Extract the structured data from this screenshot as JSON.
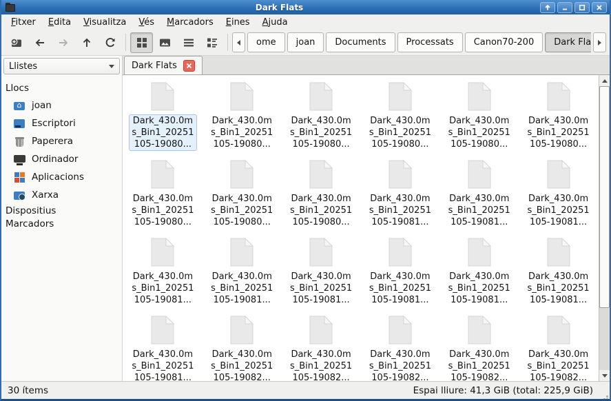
{
  "window": {
    "title": "Dark Flats",
    "controls": [
      "shade",
      "minimize",
      "maximize",
      "close"
    ]
  },
  "menu": {
    "items": [
      {
        "label": "Fitxer"
      },
      {
        "label": "Edita"
      },
      {
        "label": "Visualitza"
      },
      {
        "label": "Vés"
      },
      {
        "label": "Marcadors"
      },
      {
        "label": "Eines"
      },
      {
        "label": "Ajuda"
      }
    ]
  },
  "toolbar": {
    "nav_icons": [
      "new-tab",
      "back",
      "forward",
      "up",
      "refresh"
    ],
    "view_icons": [
      "icon-view",
      "thumbnail-view",
      "list-view",
      "compact-view"
    ],
    "active_view": "icon-view"
  },
  "breadcrumbs": {
    "items": [
      {
        "label": "ome"
      },
      {
        "label": "joan"
      },
      {
        "label": "Documents"
      },
      {
        "label": "Processats"
      },
      {
        "label": "Canon70-200"
      },
      {
        "label": "Dark Flats",
        "active": true
      }
    ]
  },
  "sidebar": {
    "mode_selector": "Llistes",
    "places_header": "Llocs",
    "places": [
      {
        "label": "joan",
        "icon": "home"
      },
      {
        "label": "Escriptori",
        "icon": "desktop"
      },
      {
        "label": "Paperera",
        "icon": "trash"
      },
      {
        "label": "Ordinador",
        "icon": "computer"
      },
      {
        "label": "Aplicacions",
        "icon": "apps"
      },
      {
        "label": "Xarxa",
        "icon": "network"
      }
    ],
    "devices_header": "Dispositius",
    "bookmarks_header": "Marcadors"
  },
  "tab": {
    "label": "Dark Flats"
  },
  "files": {
    "name_line1": "Dark_430.0m",
    "name_line2": "s_Bin1_20251",
    "items": [
      {
        "line3": "105-19080...",
        "selected": true
      },
      {
        "line3": "105-19080..."
      },
      {
        "line3": "105-19080..."
      },
      {
        "line3": "105-19080..."
      },
      {
        "line3": "105-19080..."
      },
      {
        "line3": "105-19080..."
      },
      {
        "line3": "105-19080..."
      },
      {
        "line3": "105-19080..."
      },
      {
        "line3": "105-19080..."
      },
      {
        "line3": "105-19081..."
      },
      {
        "line3": "105-19081..."
      },
      {
        "line3": "105-19081..."
      },
      {
        "line3": "105-19081..."
      },
      {
        "line3": "105-19081..."
      },
      {
        "line3": "105-19081..."
      },
      {
        "line3": "105-19081..."
      },
      {
        "line3": "105-19081..."
      },
      {
        "line3": "105-19081..."
      },
      {
        "line3": "105-19081..."
      },
      {
        "line3": "105-19082..."
      },
      {
        "line3": "105-19082..."
      },
      {
        "line3": "105-19082..."
      },
      {
        "line3": "105-19082..."
      },
      {
        "line3": "105-19082..."
      }
    ]
  },
  "statusbar": {
    "items_count": "30 ítems",
    "free_space": "Espai lliure: 41,3 GiB (total: 225,9 GiB)"
  },
  "colors": {
    "titlebar_top": "#4e8fd0",
    "titlebar_bottom": "#1f5fa6",
    "frame": "#2f6db2",
    "selection_bg": "#e4f0fb",
    "selection_border": "#a6c8ea",
    "tab_close_bg": "#e8695a"
  }
}
